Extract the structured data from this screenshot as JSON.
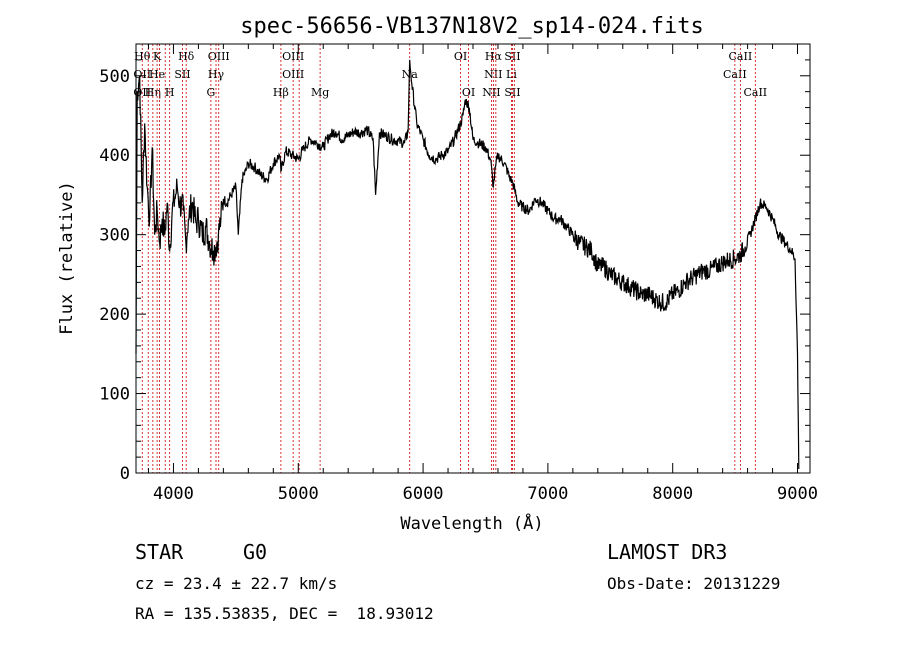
{
  "chart_data": {
    "type": "line",
    "title": "spec-56656-VB137N18V2_sp14-024.fits",
    "xlabel": "Wavelength (Å)",
    "ylabel": "Flux (relative)",
    "xlim": [
      3700,
      9100
    ],
    "ylim": [
      0,
      540
    ],
    "xticks": [
      4000,
      5000,
      6000,
      7000,
      8000,
      9000
    ],
    "yticks": [
      0,
      100,
      200,
      300,
      400,
      500
    ],
    "grid": false,
    "line_color": "#000000",
    "marker_color": "#cc0000",
    "spectrum": {
      "x": [
        3700,
        3710,
        3730,
        3750,
        3770,
        3790,
        3810,
        3830,
        3850,
        3870,
        3890,
        3910,
        3930,
        3950,
        3970,
        3990,
        4010,
        4030,
        4050,
        4080,
        4100,
        4120,
        4150,
        4180,
        4200,
        4230,
        4260,
        4290,
        4320,
        4340,
        4360,
        4380,
        4400,
        4430,
        4460,
        4500,
        4520,
        4550,
        4580,
        4600,
        4650,
        4700,
        4750,
        4800,
        4850,
        4861,
        4900,
        4950,
        5000,
        5050,
        5100,
        5150,
        5200,
        5250,
        5300,
        5350,
        5400,
        5450,
        5500,
        5550,
        5600,
        5620,
        5650,
        5700,
        5750,
        5800,
        5850,
        5880,
        5893,
        5910,
        5950,
        6000,
        6050,
        6100,
        6150,
        6200,
        6250,
        6300,
        6320,
        6340,
        6370,
        6400,
        6450,
        6500,
        6540,
        6563,
        6580,
        6600,
        6650,
        6700,
        6720,
        6760,
        6800,
        6850,
        6900,
        6950,
        7000,
        7050,
        7100,
        7150,
        7200,
        7250,
        7300,
        7350,
        7400,
        7450,
        7500,
        7550,
        7600,
        7650,
        7700,
        7750,
        7800,
        7850,
        7900,
        7950,
        8000,
        8050,
        8100,
        8150,
        8200,
        8250,
        8300,
        8350,
        8400,
        8450,
        8498,
        8542,
        8580,
        8620,
        8662,
        8700,
        8750,
        8800,
        8850,
        8900,
        8950,
        8980,
        9000,
        9010
      ],
      "y": [
        150,
        480,
        500,
        340,
        440,
        360,
        320,
        410,
        300,
        330,
        290,
        320,
        300,
        340,
        280,
        330,
        345,
        360,
        340,
        330,
        290,
        320,
        340,
        315,
        320,
        300,
        310,
        290,
        280,
        285,
        300,
        320,
        345,
        340,
        350,
        360,
        300,
        370,
        380,
        390,
        385,
        375,
        370,
        390,
        400,
        380,
        405,
        400,
        395,
        410,
        420,
        415,
        410,
        425,
        430,
        420,
        425,
        430,
        428,
        432,
        420,
        350,
        428,
        425,
        420,
        418,
        415,
        430,
        520,
        490,
        440,
        420,
        400,
        395,
        400,
        405,
        420,
        440,
        450,
        470,
        460,
        420,
        415,
        410,
        395,
        360,
        385,
        400,
        390,
        370,
        365,
        340,
        335,
        330,
        345,
        340,
        330,
        320,
        320,
        310,
        300,
        290,
        285,
        280,
        260,
        260,
        250,
        245,
        240,
        235,
        230,
        225,
        225,
        220,
        215,
        215,
        225,
        230,
        240,
        245,
        250,
        255,
        255,
        260,
        265,
        268,
        270,
        275,
        285,
        300,
        320,
        340,
        335,
        320,
        300,
        290,
        280,
        270,
        150,
        5
      ]
    },
    "lines": [
      {
        "x": 3750,
        "labels": [
          [
            "Hθ",
            0
          ],
          [
            "OII",
            1
          ],
          [
            "OII",
            2
          ]
        ]
      },
      {
        "x": 3798,
        "labels": [
          [
            "",
            0
          ]
        ]
      },
      {
        "x": 3835,
        "labels": [
          [
            "Hη",
            2
          ]
        ]
      },
      {
        "x": 3869,
        "labels": [
          [
            "K",
            0
          ],
          [
            "He",
            1
          ]
        ]
      },
      {
        "x": 3889,
        "labels": [
          [
            "",
            0
          ]
        ]
      },
      {
        "x": 3934,
        "labels": [
          [
            "",
            0
          ]
        ]
      },
      {
        "x": 3970,
        "labels": [
          [
            "H",
            2
          ]
        ]
      },
      {
        "x": 4072,
        "labels": [
          [
            "SII",
            1
          ]
        ]
      },
      {
        "x": 4102,
        "labels": [
          [
            "Hδ",
            0
          ]
        ]
      },
      {
        "x": 4300,
        "labels": [
          [
            "G",
            2
          ]
        ]
      },
      {
        "x": 4341,
        "labels": [
          [
            "Hγ",
            1
          ]
        ]
      },
      {
        "x": 4363,
        "labels": [
          [
            "OIII",
            0
          ]
        ]
      },
      {
        "x": 4861,
        "labels": [
          [
            "Hβ",
            2
          ]
        ]
      },
      {
        "x": 4959,
        "labels": [
          [
            "OIII",
            0
          ],
          [
            "OIII",
            1
          ]
        ]
      },
      {
        "x": 5007,
        "labels": [
          [
            "",
            0
          ]
        ]
      },
      {
        "x": 5175,
        "labels": [
          [
            "Mg",
            2
          ]
        ]
      },
      {
        "x": 5893,
        "labels": [
          [
            "Na",
            1
          ]
        ]
      },
      {
        "x": 6300,
        "labels": [
          [
            "OI",
            0
          ]
        ]
      },
      {
        "x": 6364,
        "labels": [
          [
            "OI",
            2
          ]
        ]
      },
      {
        "x": 6548,
        "labels": [
          [
            "NII",
            2
          ]
        ]
      },
      {
        "x": 6563,
        "labels": [
          [
            "Hα",
            0
          ],
          [
            "NII",
            1
          ]
        ]
      },
      {
        "x": 6583,
        "labels": [
          [
            "",
            0
          ]
        ]
      },
      {
        "x": 6708,
        "labels": [
          [
            "Li",
            1
          ]
        ]
      },
      {
        "x": 6716,
        "labels": [
          [
            "SII",
            0
          ],
          [
            "SII",
            2
          ]
        ]
      },
      {
        "x": 6731,
        "labels": [
          [
            "",
            0
          ]
        ]
      },
      {
        "x": 8498,
        "labels": [
          [
            "CaII",
            1
          ]
        ]
      },
      {
        "x": 8542,
        "labels": [
          [
            "CaII",
            0
          ]
        ]
      },
      {
        "x": 8662,
        "labels": [
          [
            "CaII",
            2
          ]
        ]
      }
    ]
  },
  "footer": {
    "class_label": "STAR",
    "subclass": "G0",
    "survey": "LAMOST DR3",
    "cz": "cz = 23.4 ± 22.7 km/s",
    "obs_date": "Obs-Date: 20131229",
    "coords": "RA = 135.53835, DEC =  18.93012"
  }
}
